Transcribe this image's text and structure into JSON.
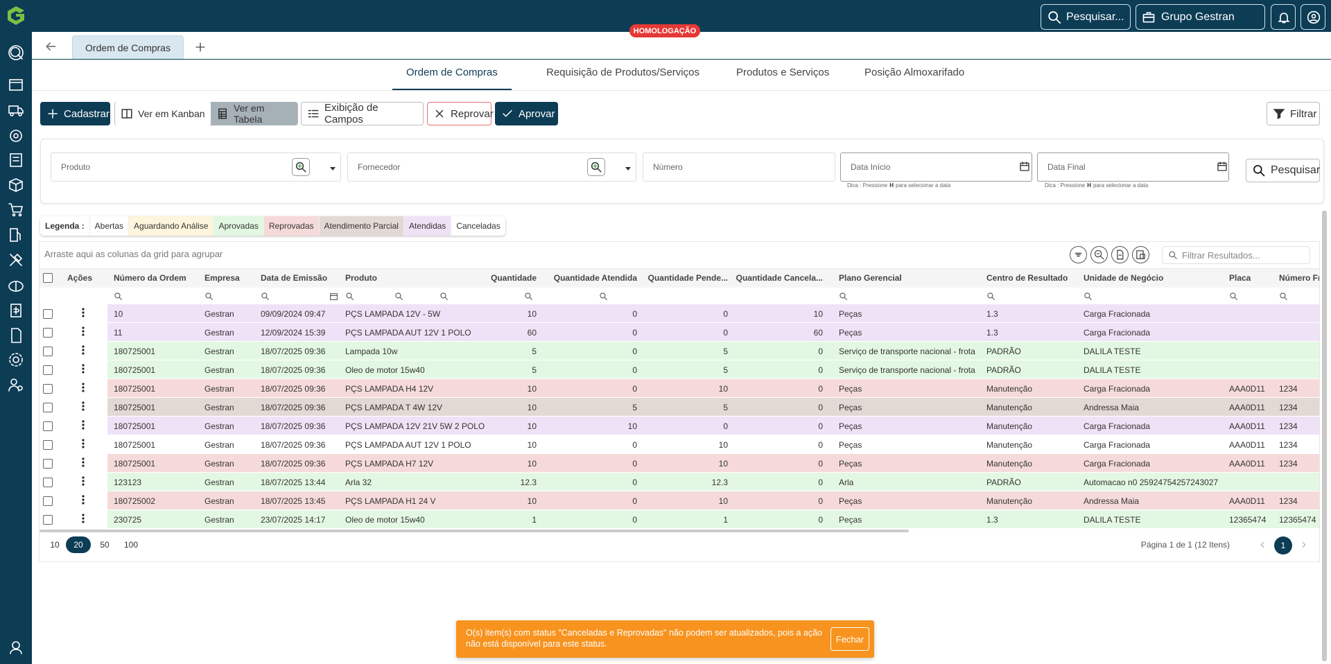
{
  "header": {
    "search": "Pesquisar...",
    "company": "Grupo Gestran",
    "environment": "HOMOLOGAÇÃO"
  },
  "tabs": {
    "open": [
      "Ordem de Compras"
    ]
  },
  "nav": {
    "items": [
      "Ordem de Compras",
      "Requisição de Produtos/Serviços",
      "Produtos e Serviços",
      "Posição Almoxarifado"
    ],
    "active": 0
  },
  "toolbar": {
    "create": "Cadastrar",
    "kanban": "Ver em Kanban",
    "table": "Ver em Tabela",
    "fields": "Exibição de Campos",
    "reject": "Reprovar",
    "approve": "Aprovar",
    "filter": "Filtrar"
  },
  "filters": {
    "product": "Produto",
    "supplier": "Fornecedor",
    "number": "Número",
    "start_date": "Data Início",
    "end_date": "Data Final",
    "hint": {
      "prefix": "Dica : Pressione",
      "key": "H",
      "suffix": "para selecionar a data"
    },
    "search": "Pesquisar"
  },
  "legend": {
    "label": "Legenda :",
    "items": [
      {
        "name": "Abertas",
        "color": "#ffffff"
      },
      {
        "name": "Aguardando Análise",
        "color": "#fdf6dc"
      },
      {
        "name": "Aprovadas",
        "color": "#e3f8e3"
      },
      {
        "name": "Reprovadas",
        "color": "#f6dada"
      },
      {
        "name": "Atendimento Parcial",
        "color": "#e3d9d4"
      },
      {
        "name": "Atendidas",
        "color": "#f0e2f6"
      },
      {
        "name": "Canceladas",
        "color": "#ffffff"
      }
    ]
  },
  "grid": {
    "group_hint": "Arraste aqui as colunas da grid para agrupar",
    "filter_placeholder": "Filtrar Resultados...",
    "actions_header": "Ações",
    "columns": [
      "Número da Ordem",
      "Empresa",
      "Data de Emissão",
      "Produto",
      "Quantidade",
      "Quantidade Atendida",
      "Quantidade Pende...",
      "Quantidade Cancela...",
      "Plano Gerencial",
      "Centro de Resultado",
      "Unidade de Negócio",
      "Placa",
      "Número Fro"
    ],
    "rows": [
      {
        "color": "#f0e2f6",
        "cells": [
          10,
          "Gestran",
          "09/09/2024 09:47",
          "PÇS LAMPADA 12V - 5W",
          10,
          0,
          0,
          10,
          "Peças",
          1.3,
          "Carga Fracionada"
        ]
      },
      {
        "color": "#f0e2f6",
        "cells": [
          11,
          "Gestran",
          "12/09/2024 15:39",
          "PÇS LAMPADA AUT 12V 1 POLO",
          60,
          0,
          0,
          60,
          "Peças",
          1.3,
          "Carga Fracionada"
        ]
      },
      {
        "color": "#e3f8e3",
        "cells": [
          180725001,
          "Gestran",
          "18/07/2025 09:36",
          "Lampada 10w",
          5,
          0,
          5,
          0,
          "Serviço de transporte nacional - frota",
          "PADRÃO",
          "DALILA TESTE"
        ]
      },
      {
        "color": "#e3f8e3",
        "cells": [
          180725001,
          "Gestran",
          "18/07/2025 09:36",
          "Oleo de motor 15w40",
          5,
          0,
          5,
          0,
          "Serviço de transporte nacional - frota",
          "PADRÃO",
          "DALILA TESTE"
        ]
      },
      {
        "color": "#f6dada",
        "cells": [
          180725001,
          "Gestran",
          "18/07/2025 09:36",
          "PÇS LAMPADA H4 12V",
          10,
          0,
          10,
          0,
          "Peças",
          "Manutenção",
          "Carga Fracionada",
          "AAA0D11",
          1234
        ]
      },
      {
        "color": "#e3d9d4",
        "cells": [
          180725001,
          "Gestran",
          "18/07/2025 09:36",
          "PÇS LAMPADA T 4W 12V",
          10,
          5,
          5,
          0,
          "Peças",
          "Manutenção",
          "Andressa Maia",
          "AAA0D11",
          1234
        ]
      },
      {
        "color": "#f0e2f6",
        "cells": [
          180725001,
          "Gestran",
          "18/07/2025 09:36",
          "PÇS LAMPADA 12V 21V 5W 2 POLO",
          10,
          10,
          0,
          0,
          "Peças",
          "Manutenção",
          "Carga Fracionada",
          "AAA0D11",
          1234
        ]
      },
      {
        "color": "#ffffff",
        "cells": [
          180725001,
          "Gestran",
          "18/07/2025 09:36",
          "PÇS LAMPADA AUT 12V 1 POLO",
          10,
          0,
          10,
          0,
          "Peças",
          "Manutenção",
          "Carga Fracionada",
          "AAA0D11",
          1234
        ]
      },
      {
        "color": "#f6dada",
        "cells": [
          180725001,
          "Gestran",
          "18/07/2025 09:36",
          "PÇS LAMPADA H7 12V",
          10,
          0,
          10,
          0,
          "Peças",
          "Manutenção",
          "Carga Fracionada",
          "AAA0D11",
          1234
        ]
      },
      {
        "color": "#e3f8e3",
        "cells": [
          123123,
          "Gestran",
          "18/07/2025 13:44",
          "Arla 32",
          12.3,
          0,
          12.3,
          0,
          "Arla",
          "PADRÃO",
          "Automacao n0 25924754257243027"
        ]
      },
      {
        "color": "#f6dada",
        "cells": [
          180725002,
          "Gestran",
          "18/07/2025 13:45",
          "PÇS LAMPADA H1 24 V",
          10,
          0,
          10,
          0,
          "Peças",
          "Manutenção",
          "Andressa Maia",
          "AAA0D11",
          1234
        ]
      },
      {
        "color": "#e3f8e3",
        "cells": [
          230725,
          "Gestran",
          "23/07/2025 14:17",
          "Oleo de motor 15w40",
          1,
          0,
          1,
          0,
          "Peças",
          1.3,
          "DALILA TESTE",
          12365474,
          12365474
        ]
      }
    ],
    "page_sizes": [
      10,
      20,
      50,
      100
    ],
    "page_size": 20,
    "page_info": "Página 1 de 1 (12 Itens)",
    "page": 1
  },
  "toast": {
    "message": "O(s) item(s) com status \"Canceladas e Reprovadas\" não podem ser atualizados, pois a ação não está disponível para este status.",
    "close": "Fechar"
  }
}
